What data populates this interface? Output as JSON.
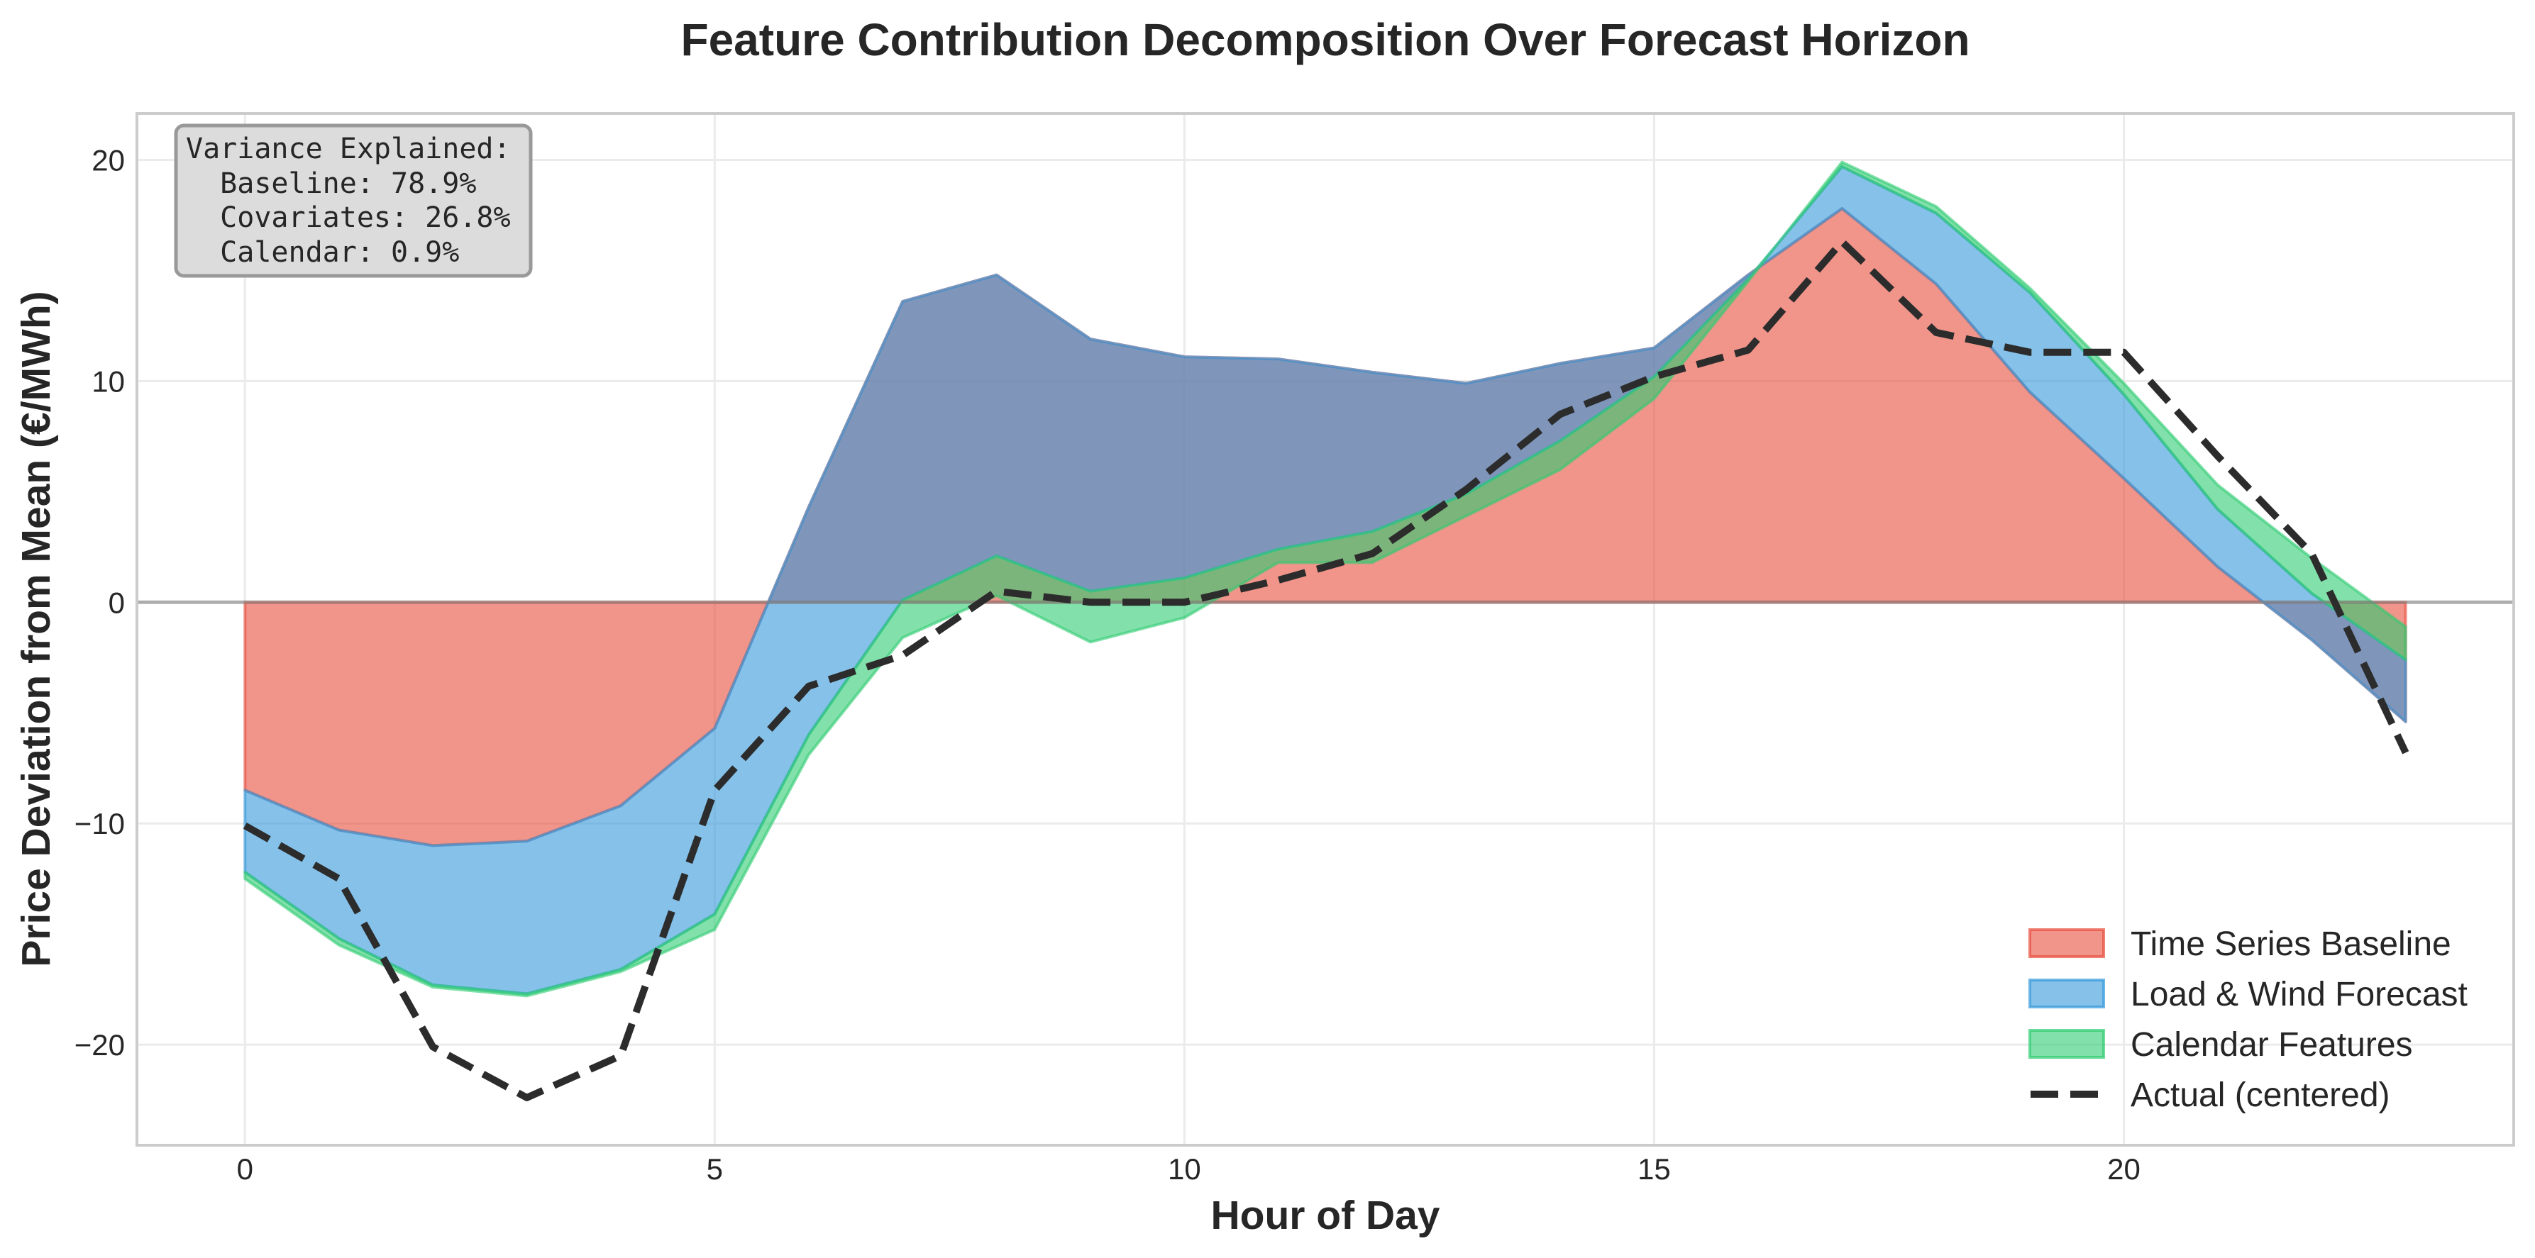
{
  "chart_data": {
    "type": "area",
    "stacked": true,
    "title": "Feature Contribution Decomposition Over Forecast Horizon",
    "xlabel": "Hour of Day",
    "ylabel": "Price Deviation from Mean (€/MWh)",
    "xlim": [
      -1.15,
      24.15
    ],
    "ylim": [
      -24.55,
      22.1
    ],
    "grid": true,
    "legend_position": "lower-right",
    "x": [
      0,
      1,
      2,
      3,
      4,
      5,
      6,
      7,
      8,
      9,
      10,
      11,
      12,
      13,
      14,
      15,
      16,
      17,
      18,
      19,
      20,
      21,
      22,
      23
    ],
    "xticks": [
      0,
      5,
      10,
      15,
      20
    ],
    "xtick_labels": [
      "0",
      "5",
      "10",
      "15",
      "20"
    ],
    "yticks": [
      -20,
      -10,
      0,
      10,
      20
    ],
    "ytick_labels": [
      "−20",
      "−10",
      "0",
      "10",
      "20"
    ],
    "series": [
      {
        "name": "Time Series Baseline",
        "kind": "stacked-area",
        "color": "#e74c3c",
        "values": [
          -8.5,
          -10.3,
          -11.0,
          -10.8,
          -9.2,
          -5.7,
          4.3,
          13.6,
          14.8,
          11.9,
          11.1,
          11.0,
          10.4,
          9.9,
          10.8,
          11.5,
          14.8,
          17.8,
          14.4,
          9.5,
          5.6,
          1.6,
          -1.7,
          -5.4
        ]
      },
      {
        "name": "Load & Wind Forecast",
        "kind": "stacked-area",
        "color": "#3498db",
        "values": [
          -3.7,
          -4.9,
          -6.3,
          -6.9,
          -7.4,
          -8.4,
          -10.3,
          -13.5,
          -12.7,
          -11.4,
          -10.0,
          -8.6,
          -7.2,
          -5.0,
          -3.5,
          -1.3,
          -0.2,
          1.9,
          3.2,
          4.5,
          3.8,
          2.6,
          2.1,
          2.8
        ]
      },
      {
        "name": "Calendar Features",
        "kind": "stacked-area",
        "color": "#2ecc71",
        "values": [
          -0.3,
          -0.3,
          -0.1,
          -0.1,
          -0.1,
          -0.7,
          -0.9,
          -1.7,
          -1.8,
          -2.3,
          -1.8,
          -0.6,
          -1.4,
          -1.0,
          -1.3,
          -1.0,
          -0.1,
          0.2,
          0.3,
          0.2,
          0.5,
          1.1,
          1.6,
          1.5
        ]
      },
      {
        "name": "Actual (centered)",
        "kind": "dashed-line",
        "color": "#2c2c2c",
        "values": [
          -10.1,
          -12.5,
          -20.1,
          -22.4,
          -20.5,
          -8.5,
          -3.8,
          -2.4,
          0.5,
          0.0,
          0.0,
          1.0,
          2.2,
          5.1,
          8.5,
          10.2,
          11.4,
          16.3,
          12.2,
          11.3,
          11.3,
          6.6,
          2.2,
          -6.8
        ]
      }
    ],
    "annotation": {
      "lines": [
        "Variance Explained:",
        "  Baseline: 78.9%",
        "  Covariates: 26.8%",
        "  Calendar: 0.9%"
      ]
    },
    "zero_line": 0
  }
}
